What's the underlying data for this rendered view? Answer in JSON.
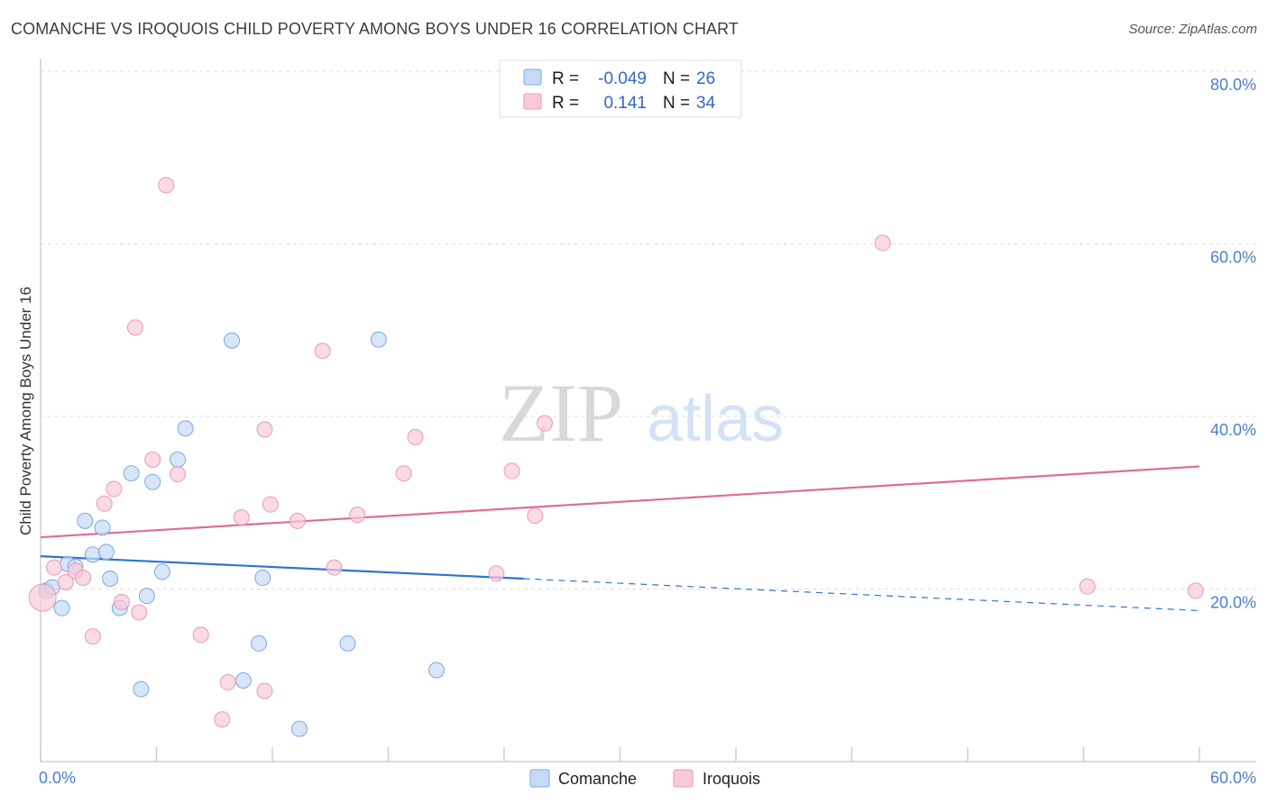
{
  "title": "COMANCHE VS IROQUOIS CHILD POVERTY AMONG BOYS UNDER 16 CORRELATION CHART",
  "source": "Source: ZipAtlas.com",
  "watermark": {
    "zip": "ZIP",
    "atlas": "atlas"
  },
  "colors": {
    "comanche_fill": "#c6daf5",
    "comanche_stroke": "#7ea8df",
    "comanche_line": "#2f74d0",
    "iroquois_fill": "#f8cad8",
    "iroquois_stroke": "#ea9ab5",
    "iroquois_line": "#e06c97",
    "axis_text": "#4a7fd0",
    "grid": "#dddddd"
  },
  "stats_legend": {
    "rows": [
      {
        "series": "Comanche",
        "r_label": "R =",
        "r_value": "-0.049",
        "n_label": "N =",
        "n_value": "26"
      },
      {
        "series": "Iroquois",
        "r_label": "R =",
        "r_value": "0.141",
        "n_label": "N =",
        "n_value": "34"
      }
    ]
  },
  "chart_data": {
    "type": "scatter",
    "title": "COMANCHE VS IROQUOIS CHILD POVERTY AMONG BOYS UNDER 16 CORRELATION CHART",
    "xlabel": "",
    "ylabel": "Child Poverty Among Boys Under 16",
    "xlim": [
      0,
      60
    ],
    "ylim": [
      0,
      80
    ],
    "x_tick_labels": {
      "min": "0.0%",
      "max": "60.0%"
    },
    "y_ticks": [
      {
        "value": 20,
        "label": "20.0%"
      },
      {
        "value": 40,
        "label": "40.0%"
      },
      {
        "value": 60,
        "label": "60.0%"
      },
      {
        "value": 80,
        "label": "80.0%"
      }
    ],
    "grid": true,
    "legend": [
      "Comanche",
      "Iroquois"
    ],
    "series": [
      {
        "name": "Comanche",
        "points": [
          [
            0.3,
            19.8
          ],
          [
            0.6,
            20.2
          ],
          [
            1.1,
            17.8
          ],
          [
            1.4,
            22.9
          ],
          [
            1.8,
            22.6
          ],
          [
            2.3,
            27.9
          ],
          [
            2.7,
            24.0
          ],
          [
            3.2,
            27.1
          ],
          [
            3.4,
            24.3
          ],
          [
            3.6,
            21.2
          ],
          [
            4.1,
            17.8
          ],
          [
            4.7,
            33.4
          ],
          [
            5.2,
            8.4
          ],
          [
            5.5,
            19.2
          ],
          [
            5.8,
            32.4
          ],
          [
            6.3,
            22.0
          ],
          [
            7.1,
            35.0
          ],
          [
            7.5,
            38.6
          ],
          [
            9.9,
            48.8
          ],
          [
            10.5,
            9.4
          ],
          [
            11.3,
            13.7
          ],
          [
            11.5,
            21.3
          ],
          [
            13.4,
            3.8
          ],
          [
            15.9,
            13.7
          ],
          [
            17.5,
            48.9
          ],
          [
            20.5,
            10.6
          ]
        ],
        "trend": {
          "x_start": 0,
          "y_start": 23.8,
          "x_end": 25.0,
          "y_end": 21.2,
          "x_dash_end": 60,
          "y_dash_end": 17.5
        }
      },
      {
        "name": "Iroquois",
        "points": [
          [
            0.1,
            19.0
          ],
          [
            0.7,
            22.5
          ],
          [
            1.3,
            20.8
          ],
          [
            1.8,
            22.1
          ],
          [
            2.2,
            21.3
          ],
          [
            2.7,
            14.5
          ],
          [
            3.3,
            29.9
          ],
          [
            3.8,
            31.6
          ],
          [
            4.2,
            18.5
          ],
          [
            4.9,
            50.3
          ],
          [
            5.1,
            17.3
          ],
          [
            5.8,
            35.0
          ],
          [
            6.5,
            66.8
          ],
          [
            7.1,
            33.3
          ],
          [
            8.3,
            14.7
          ],
          [
            9.4,
            4.9
          ],
          [
            9.7,
            9.2
          ],
          [
            10.4,
            28.3
          ],
          [
            11.6,
            8.2
          ],
          [
            11.6,
            38.5
          ],
          [
            11.9,
            29.8
          ],
          [
            13.3,
            27.9
          ],
          [
            14.6,
            47.6
          ],
          [
            15.2,
            22.5
          ],
          [
            16.4,
            28.6
          ],
          [
            18.8,
            33.4
          ],
          [
            19.4,
            37.6
          ],
          [
            23.6,
            21.8
          ],
          [
            24.4,
            33.7
          ],
          [
            25.6,
            28.5
          ],
          [
            26.1,
            39.2
          ],
          [
            43.6,
            60.1
          ],
          [
            54.2,
            20.3
          ],
          [
            59.8,
            19.8
          ]
        ],
        "trend": {
          "x_start": 0,
          "y_start": 26.0,
          "x_end": 60,
          "y_end": 34.2
        }
      }
    ]
  }
}
